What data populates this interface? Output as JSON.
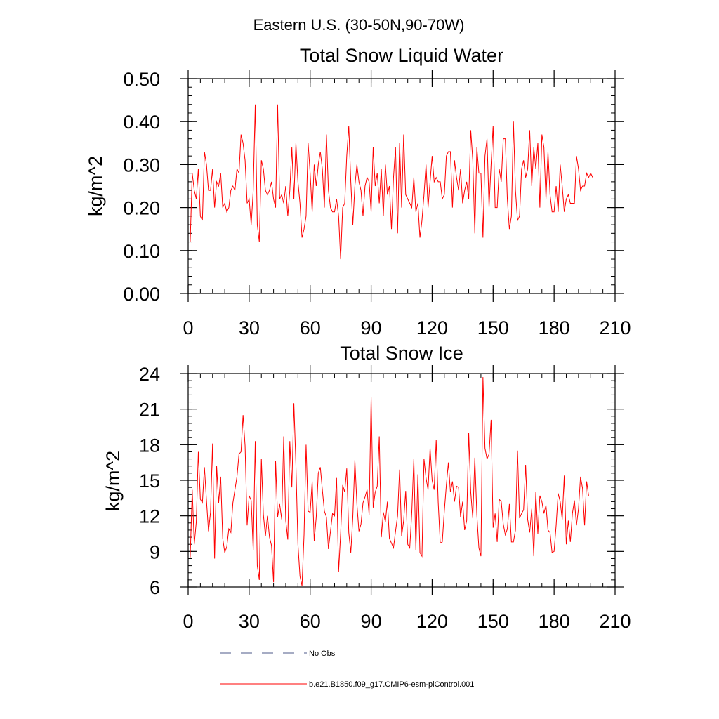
{
  "figure": {
    "super_title": "Eastern U.S. (30-50N,90-70W)"
  },
  "legend": {
    "items": [
      {
        "label": "No Obs",
        "style": "dashed",
        "color": "#4d5a8a"
      },
      {
        "label": "b.e21.B1850.f09_g17.CMIP6-esm-piControl.001",
        "style": "solid",
        "color": "#ff0000"
      }
    ]
  },
  "chart_data": [
    {
      "type": "line",
      "title": "Total Snow Liquid Water",
      "xlabel": "",
      "ylabel": "kg/m^2",
      "xlim": [
        0,
        210
      ],
      "ylim": [
        0,
        0.5
      ],
      "xticks": [
        0,
        30,
        60,
        90,
        120,
        150,
        180,
        210
      ],
      "xtick_labels": [
        "0",
        "30",
        "60",
        "90",
        "120",
        "150",
        "180",
        "210"
      ],
      "yticks": [
        0,
        0.1,
        0.2,
        0.3,
        0.4,
        0.5
      ],
      "ytick_labels": [
        "0.00",
        "0.10",
        "0.20",
        "0.30",
        "0.40",
        "0.50"
      ],
      "grid": false,
      "x_start": 1,
      "x_step": 1,
      "series": [
        {
          "name": "b.e21.B1850.f09_g17.CMIP6-esm-piControl.001",
          "color": "#ff0000",
          "values": [
            0.12,
            0.28,
            0.24,
            0.22,
            0.29,
            0.18,
            0.17,
            0.33,
            0.3,
            0.24,
            0.24,
            0.29,
            0.2,
            0.26,
            0.25,
            0.28,
            0.2,
            0.21,
            0.19,
            0.2,
            0.24,
            0.25,
            0.24,
            0.29,
            0.28,
            0.37,
            0.35,
            0.31,
            0.21,
            0.22,
            0.16,
            0.24,
            0.44,
            0.16,
            0.12,
            0.31,
            0.29,
            0.24,
            0.23,
            0.24,
            0.26,
            0.22,
            0.2,
            0.44,
            0.22,
            0.23,
            0.21,
            0.25,
            0.18,
            0.24,
            0.34,
            0.22,
            0.35,
            0.26,
            0.21,
            0.13,
            0.15,
            0.18,
            0.35,
            0.28,
            0.19,
            0.3,
            0.25,
            0.3,
            0.33,
            0.29,
            0.2,
            0.37,
            0.24,
            0.2,
            0.19,
            0.19,
            0.22,
            0.18,
            0.08,
            0.2,
            0.21,
            0.32,
            0.39,
            0.26,
            0.16,
            0.25,
            0.3,
            0.26,
            0.24,
            0.18,
            0.25,
            0.27,
            0.26,
            0.19,
            0.34,
            0.25,
            0.28,
            0.21,
            0.29,
            0.18,
            0.3,
            0.23,
            0.25,
            0.15,
            0.27,
            0.34,
            0.14,
            0.35,
            0.2,
            0.37,
            0.23,
            0.22,
            0.21,
            0.2,
            0.27,
            0.19,
            0.21,
            0.13,
            0.17,
            0.23,
            0.3,
            0.2,
            0.26,
            0.32,
            0.26,
            0.27,
            0.26,
            0.26,
            0.22,
            0.23,
            0.32,
            0.33,
            0.33,
            0.2,
            0.31,
            0.27,
            0.24,
            0.29,
            0.21,
            0.24,
            0.26,
            0.22,
            0.38,
            0.31,
            0.14,
            0.34,
            0.28,
            0.28,
            0.13,
            0.32,
            0.36,
            0.2,
            0.3,
            0.39,
            0.2,
            0.2,
            0.29,
            0.26,
            0.36,
            0.36,
            0.22,
            0.15,
            0.18,
            0.4,
            0.24,
            0.17,
            0.18,
            0.29,
            0.31,
            0.27,
            0.29,
            0.38,
            0.25,
            0.34,
            0.29,
            0.35,
            0.2,
            0.37,
            0.34,
            0.22,
            0.33,
            0.23,
            0.19,
            0.19,
            0.25,
            0.19,
            0.3,
            0.25,
            0.19,
            0.22,
            0.23,
            0.21,
            0.21,
            0.21,
            0.32,
            0.29,
            0.24,
            0.25,
            0.25,
            0.28,
            0.27,
            0.28,
            0.27
          ]
        }
      ]
    },
    {
      "type": "line",
      "title": "Total Snow Ice",
      "xlabel": "",
      "ylabel": "kg/m^2",
      "xlim": [
        0,
        210
      ],
      "ylim": [
        6,
        24
      ],
      "xticks": [
        0,
        30,
        60,
        90,
        120,
        150,
        180,
        210
      ],
      "xtick_labels": [
        "0",
        "30",
        "60",
        "90",
        "120",
        "150",
        "180",
        "210"
      ],
      "yticks": [
        6,
        9,
        12,
        15,
        18,
        21,
        24
      ],
      "ytick_labels": [
        "6",
        "9",
        "12",
        "15",
        "18",
        "21",
        "24"
      ],
      "grid": false,
      "x_start": 1,
      "x_step": 1,
      "series": [
        {
          "name": "b.e21.B1850.f09_g17.CMIP6-esm-piControl.001",
          "color": "#ff0000",
          "values": [
            8.5,
            14.2,
            9.6,
            11.5,
            17.4,
            13.4,
            13.1,
            16.1,
            13.3,
            10.7,
            12.3,
            18.1,
            8.4,
            16.2,
            13.1,
            15.3,
            10.1,
            8.9,
            9.4,
            10.9,
            10.6,
            13.1,
            14.2,
            15.3,
            17.2,
            17.4,
            20.5,
            17.9,
            11.2,
            13.7,
            13.3,
            9.1,
            18.3,
            7.8,
            6.6,
            16.8,
            12.1,
            10.3,
            12.0,
            10.2,
            9.5,
            6.4,
            16.6,
            11.9,
            13.0,
            11.7,
            18.7,
            11.6,
            10.0,
            18.3,
            14.4,
            21.5,
            16.3,
            9.6,
            6.9,
            6.1,
            10.4,
            18.0,
            12.4,
            12.3,
            14.9,
            9.9,
            11.9,
            15.6,
            16.1,
            14.2,
            12.4,
            11.9,
            9.2,
            10.7,
            12.2,
            12.0,
            15.2,
            7.3,
            10.5,
            14.6,
            14.0,
            16.0,
            10.6,
            8.9,
            11.9,
            16.7,
            13.0,
            10.7,
            11.3,
            13.1,
            13.6,
            14.2,
            12.1,
            22.0,
            12.7,
            14.0,
            14.5,
            18.7,
            10.2,
            12.3,
            11.5,
            13.2,
            10.1,
            9.7,
            9.3,
            10.7,
            12.0,
            15.9,
            10.3,
            11.6,
            14.1,
            9.6,
            9.3,
            12.3,
            16.8,
            9.1,
            15.5,
            8.9,
            8.6,
            16.8,
            15.2,
            14.2,
            17.7,
            15.0,
            14.2,
            18.4,
            13.1,
            9.7,
            9.8,
            12.4,
            14.6,
            16.5,
            14.0,
            14.9,
            13.2,
            14.5,
            14.4,
            11.9,
            13.2,
            10.8,
            11.6,
            19.0,
            14.0,
            11.8,
            16.9,
            12.1,
            9.3,
            8.6,
            23.7,
            17.7,
            16.8,
            17.2,
            20.1,
            11.0,
            12.2,
            9.8,
            13.4,
            13.2,
            11.3,
            10.4,
            10.9,
            13.0,
            9.8,
            9.8,
            10.8,
            17.5,
            11.8,
            12.2,
            12.5,
            16.3,
            11.7,
            10.6,
            12.6,
            8.6,
            14.0,
            10.5,
            13.7,
            13.2,
            12.2,
            12.9,
            10.8,
            10.6,
            8.9,
            9.0,
            11.2,
            13.9,
            13.2,
            11.7,
            15.4,
            9.6,
            11.6,
            9.8,
            12.2,
            13.3,
            11.2,
            12.6,
            15.3,
            14.3,
            11.2,
            14.9,
            13.7
          ]
        }
      ]
    }
  ]
}
